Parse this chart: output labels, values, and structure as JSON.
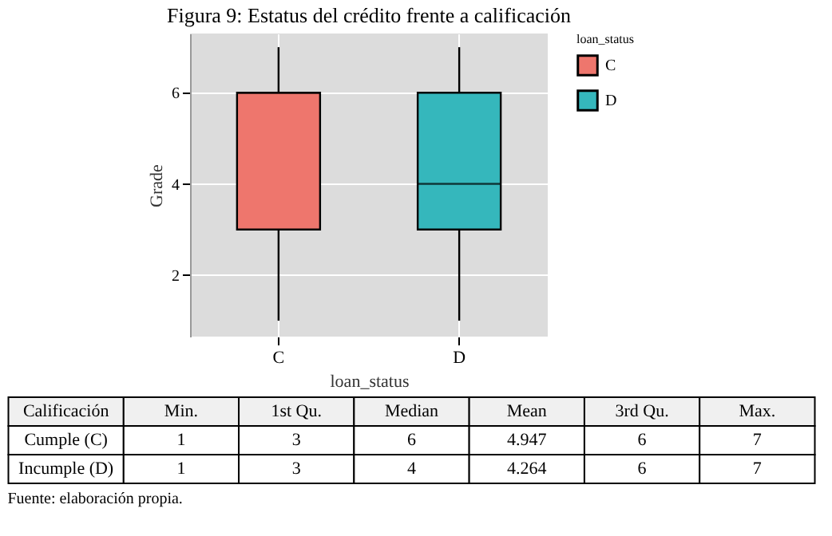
{
  "chart_data": {
    "type": "box",
    "title": "Figura 9: Estatus del crédito frente a calificación",
    "categories": [
      "C",
      "D"
    ],
    "series": [
      {
        "name": "C",
        "color": "#ee766d",
        "boxes": [
          {
            "low": 1,
            "q1": 3,
            "median": 6,
            "q3": 6,
            "high": 7
          },
          null
        ]
      },
      {
        "name": "D",
        "color": "#35b7bc",
        "boxes": [
          null,
          {
            "low": 1,
            "q1": 3,
            "median": 4,
            "q3": 6,
            "high": 7
          }
        ]
      }
    ],
    "xlabel": "loan_status",
    "ylabel": "Grade",
    "legend_title": "loan_status",
    "legend": "right",
    "ylim": [
      0.65,
      7.3
    ],
    "yticks": [
      2,
      4,
      6
    ],
    "grid": true,
    "annotations": [
      "Calificación",
      "Min.",
      "1st Qu.",
      "Median",
      "Mean",
      "3rd Qu.",
      "Max.",
      "Cumple (C)",
      "1",
      "3",
      "6",
      "4.947",
      "6",
      "7",
      "Incumple (D)",
      "1",
      "3",
      "4",
      "4.264",
      "6",
      "7",
      "Fuente: elaboración propia."
    ]
  }
}
